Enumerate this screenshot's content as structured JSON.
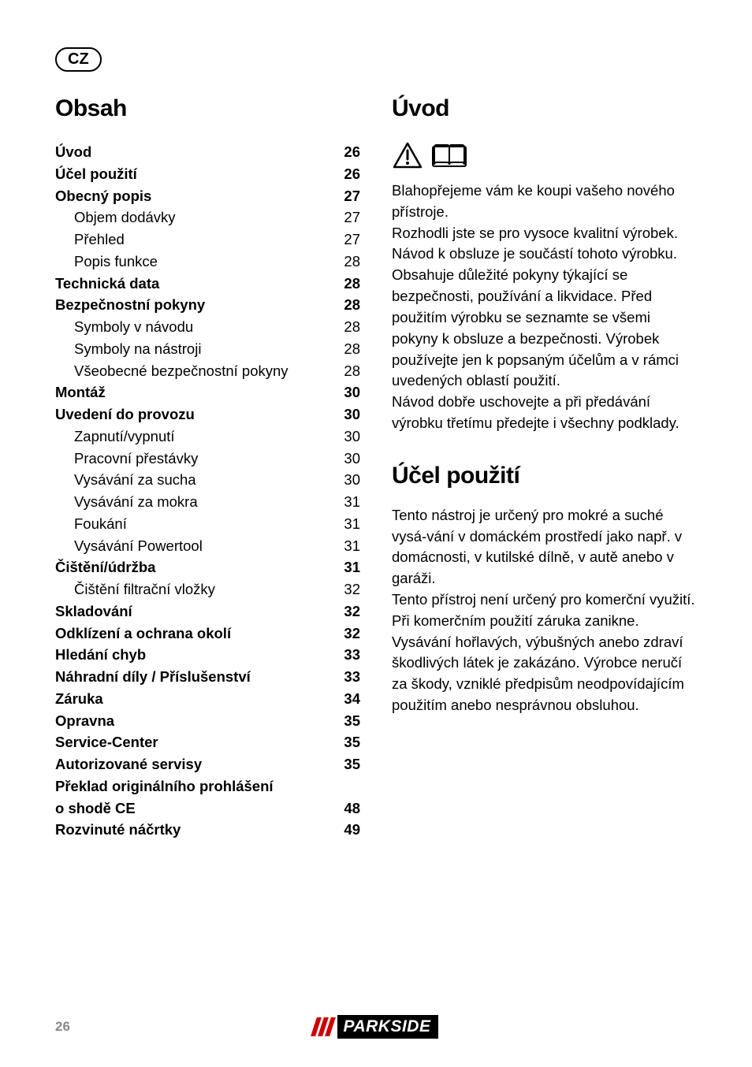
{
  "badge": "CZ",
  "left": {
    "title": "Obsah",
    "toc": [
      {
        "label": "Úvod",
        "page": "26",
        "bold": true,
        "indent": false
      },
      {
        "label": "Účel použití",
        "page": "26",
        "bold": true,
        "indent": false
      },
      {
        "label": "Obecný popis",
        "page": "27",
        "bold": true,
        "indent": false
      },
      {
        "label": "Objem dodávky",
        "page": "27",
        "bold": false,
        "indent": true
      },
      {
        "label": "Přehled",
        "page": "27",
        "bold": false,
        "indent": true
      },
      {
        "label": "Popis funkce",
        "page": "28",
        "bold": false,
        "indent": true
      },
      {
        "label": "Technická data",
        "page": "28",
        "bold": true,
        "indent": false
      },
      {
        "label": "Bezpečnostní pokyny",
        "page": "28",
        "bold": true,
        "indent": false
      },
      {
        "label": "Symboly v návodu",
        "page": "28",
        "bold": false,
        "indent": true
      },
      {
        "label": "Symboly na nástroji",
        "page": "28",
        "bold": false,
        "indent": true
      },
      {
        "label": "Všeobecné bezpečnostní pokyny",
        "page": "28",
        "bold": false,
        "indent": true
      },
      {
        "label": "Montáž",
        "page": "30",
        "bold": true,
        "indent": false
      },
      {
        "label": "Uvedení do provozu",
        "page": "30",
        "bold": true,
        "indent": false
      },
      {
        "label": "Zapnutí/vypnutí",
        "page": "30",
        "bold": false,
        "indent": true
      },
      {
        "label": "Pracovní přestávky",
        "page": "30",
        "bold": false,
        "indent": true
      },
      {
        "label": "Vysávání za sucha",
        "page": "30",
        "bold": false,
        "indent": true
      },
      {
        "label": "Vysávání za mokra",
        "page": "31",
        "bold": false,
        "indent": true
      },
      {
        "label": "Foukání",
        "page": "31",
        "bold": false,
        "indent": true
      },
      {
        "label": "Vysávání Powertool",
        "page": "31",
        "bold": false,
        "indent": true
      },
      {
        "label": "Čištění/údržba",
        "page": "31",
        "bold": true,
        "indent": false
      },
      {
        "label": "Čištění filtrační vložky",
        "page": "32",
        "bold": false,
        "indent": true
      },
      {
        "label": "Skladování",
        "page": "32",
        "bold": true,
        "indent": false
      },
      {
        "label": "Odklízení a ochrana okolí",
        "page": "32",
        "bold": true,
        "indent": false
      },
      {
        "label": "Hledání chyb",
        "page": "33",
        "bold": true,
        "indent": false
      },
      {
        "label": "Náhradní díly / Příslušenství",
        "page": "33",
        "bold": true,
        "indent": false
      },
      {
        "label": "Záruka",
        "page": "34",
        "bold": true,
        "indent": false
      },
      {
        "label": "Opravna",
        "page": "35",
        "bold": true,
        "indent": false
      },
      {
        "label": "Service-Center",
        "page": "35",
        "bold": true,
        "indent": false
      },
      {
        "label": "Autorizované servisy",
        "page": "35",
        "bold": true,
        "indent": false
      },
      {
        "label": "Překlad originálního prohlášení",
        "page": "",
        "bold": true,
        "indent": false,
        "nobreak": true
      },
      {
        "label": "o shodě CE",
        "page": "48",
        "bold": true,
        "indent": false
      },
      {
        "label": "Rozvinuté náčrtky",
        "page": "49",
        "bold": true,
        "indent": false
      }
    ]
  },
  "right": {
    "title1": "Úvod",
    "para1": "Blahopřejeme vám ke koupi vašeho nového přístroje.\nRozhodli jste se pro vysoce kvalitní výrobek. Návod k obsluze je součástí tohoto výrobku. Obsahuje důležité pokyny týkající se bezpečnosti, používání a likvidace. Před použitím výrobku se seznamte se všemi pokyny k obsluze a bezpečnosti. Výrobek používejte jen k popsaným účelům a v rámci uvedených oblastí použití.\nNávod dobře uschovejte a při předávání výrobku třetímu předejte i všechny podklady.",
    "title2": "Účel použití",
    "para2": "Tento nástroj je určený pro mokré a suché vysá-vání v domáckém prostředí jako např. v domácnosti, v kutilské dílně, v autě anebo v garáži.\nTento přístroj není určený pro komerční využití. Při komerčním použití záruka zanikne. Vysávání hořlavých, výbušných anebo zdraví škodlivých látek je zakázáno. Výrobce neručí za škody, vzniklé předpisům neodpovídajícím použitím anebo nesprávnou obsluhou."
  },
  "footer": {
    "page": "26",
    "brand": "PARKSIDE"
  }
}
